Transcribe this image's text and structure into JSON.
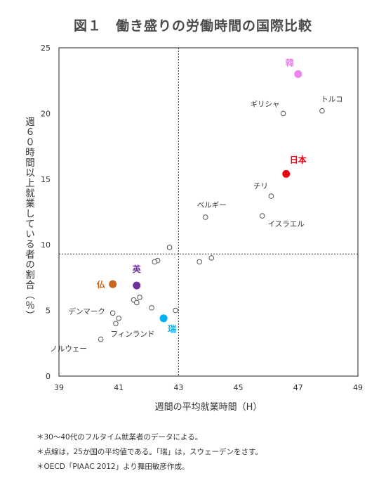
{
  "title": "図１　働き盛りの労働時間の国際比較",
  "notes": [
    "＊30～40代のフルタイム就業者のデータによる。",
    "＊点線は，25か国の平均値である。「瑞」は，スウェーデンをさす。",
    "＊OECD「PIAAC 2012」より舞田敏彦作成。"
  ],
  "colors": {
    "korea": "#ee82ee",
    "japan": "#e60012",
    "france": "#c8651b",
    "uk": "#7030a0",
    "sweden": "#00b0f0",
    "other": "#555555"
  },
  "chart_data": {
    "type": "scatter",
    "xlabel": "週間の平均就業時間（H）",
    "ylabel": "週６０時間以上就業している者の割合（％）",
    "xlim": [
      39,
      49
    ],
    "ylim": [
      0,
      25
    ],
    "xticks": [
      39,
      41,
      43,
      45,
      47,
      49
    ],
    "yticks": [
      0,
      5,
      10,
      15,
      20,
      25
    ],
    "grid": false,
    "average_lines": {
      "x": 43.0,
      "y": 9.3
    },
    "highlighted": [
      {
        "label": "韓",
        "x": 47.0,
        "y": 23.0,
        "color_key": "korea"
      },
      {
        "label": "日本",
        "x": 46.6,
        "y": 15.4,
        "color_key": "japan"
      },
      {
        "label": "仏",
        "x": 40.8,
        "y": 7.0,
        "color_key": "france"
      },
      {
        "label": "英",
        "x": 41.6,
        "y": 6.9,
        "color_key": "uk"
      },
      {
        "label": "瑞",
        "x": 42.5,
        "y": 4.4,
        "color_key": "sweden"
      }
    ],
    "labeled_others": [
      {
        "label": "トルコ",
        "x": 47.8,
        "y": 20.2
      },
      {
        "label": "ギリシャ",
        "x": 46.5,
        "y": 20.0
      },
      {
        "label": "チリ",
        "x": 46.1,
        "y": 13.7
      },
      {
        "label": "ベルギー",
        "x": 43.9,
        "y": 12.1
      },
      {
        "label": "イスラエル",
        "x": 45.8,
        "y": 12.2
      },
      {
        "label": "デンマーク",
        "x": 40.8,
        "y": 4.8
      },
      {
        "label": "フィンランド",
        "x": 40.9,
        "y": 4.0
      },
      {
        "label": "ノルウェー",
        "x": 40.4,
        "y": 2.8
      }
    ],
    "others": [
      {
        "x": 42.7,
        "y": 9.8
      },
      {
        "x": 42.3,
        "y": 8.8
      },
      {
        "x": 42.2,
        "y": 8.7
      },
      {
        "x": 44.1,
        "y": 9.0
      },
      {
        "x": 43.7,
        "y": 8.7
      },
      {
        "x": 40.8,
        "y": 7.1
      },
      {
        "x": 41.5,
        "y": 5.8
      },
      {
        "x": 41.6,
        "y": 5.6
      },
      {
        "x": 41.7,
        "y": 6.0
      },
      {
        "x": 42.1,
        "y": 5.2
      },
      {
        "x": 42.9,
        "y": 5.0
      },
      {
        "x": 41.0,
        "y": 4.4
      }
    ]
  }
}
